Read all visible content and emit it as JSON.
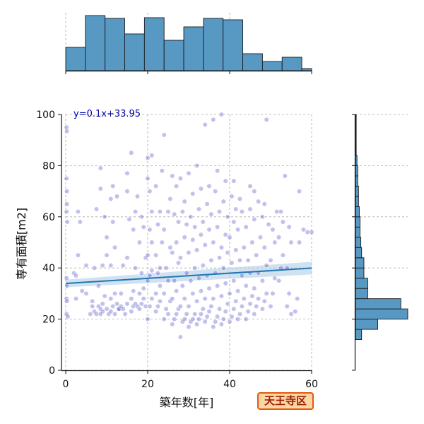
{
  "area_label": "天王寺区",
  "colors": {
    "point_fill": "#2222bb",
    "regression_line": "#1f77b4",
    "confidence_band": "#a9c8e3",
    "histogram_fill": "#5899c4",
    "histogram_edge": "#1a1a1a",
    "equation_text": "#0000aa",
    "badge_fill": "#fcd6a5",
    "badge_border": "#e25a0c"
  },
  "chart_data": {
    "type": "scatter",
    "title": "",
    "xlabel": "築年数[年]",
    "ylabel": "専有面積[m2]",
    "xlim": [
      0,
      60
    ],
    "ylim": [
      0,
      100
    ],
    "x_ticks": [
      0,
      20,
      40,
      60
    ],
    "y_ticks": [
      0,
      20,
      40,
      60,
      80,
      100
    ],
    "grid": true,
    "regression": {
      "equation_text": "y=0.1x+33.95",
      "slope": 0.1,
      "intercept": 33.95,
      "confidence_band_halfwidth": 2.5
    },
    "top_histogram": {
      "bin_edges": [
        0,
        4.8,
        9.6,
        14.4,
        19.2,
        24.0,
        28.8,
        33.6,
        38.4,
        43.2,
        48.0,
        52.8,
        57.6,
        60.0
      ],
      "counts": [
        33,
        78,
        74,
        52,
        75,
        43,
        62,
        74,
        72,
        24,
        13,
        19,
        3
      ]
    },
    "right_histogram": {
      "bin_edges": [
        12,
        16,
        20,
        24,
        28,
        32,
        36,
        40,
        44,
        48,
        52,
        56,
        60,
        64,
        68,
        72,
        76,
        80,
        84,
        88,
        92,
        96,
        100
      ],
      "counts": [
        8,
        29,
        68,
        59,
        16,
        16,
        11,
        11,
        8,
        7,
        6,
        6,
        5,
        4,
        4,
        3,
        3,
        2,
        1,
        1,
        1,
        1
      ]
    },
    "points": [
      [
        0.2,
        95
      ],
      [
        0.3,
        93.5
      ],
      [
        0.2,
        75
      ],
      [
        0.3,
        70
      ],
      [
        0.3,
        65
      ],
      [
        0.2,
        62
      ],
      [
        0.4,
        58
      ],
      [
        0.2,
        36
      ],
      [
        0.3,
        33
      ],
      [
        0.2,
        28
      ],
      [
        0.3,
        27
      ],
      [
        0.2,
        22
      ],
      [
        0.5,
        21
      ],
      [
        2,
        38
      ],
      [
        2.5,
        37
      ],
      [
        3,
        45
      ],
      [
        3.5,
        58
      ],
      [
        3,
        62
      ],
      [
        2.5,
        28
      ],
      [
        4,
        31
      ],
      [
        5,
        41
      ],
      [
        5,
        30
      ],
      [
        6,
        22
      ],
      [
        6.5,
        25
      ],
      [
        7,
        23
      ],
      [
        7.5,
        22
      ],
      [
        6.5,
        27
      ],
      [
        7,
        40
      ],
      [
        7.5,
        63
      ],
      [
        8,
        33
      ],
      [
        8,
        25
      ],
      [
        8.5,
        24
      ],
      [
        9,
        23
      ],
      [
        8.5,
        22
      ],
      [
        9,
        26
      ],
      [
        9.5,
        29
      ],
      [
        10,
        24
      ],
      [
        10.5,
        22
      ],
      [
        9,
        41
      ],
      [
        10,
        52
      ],
      [
        10,
        45
      ],
      [
        9.5,
        60
      ],
      [
        8.5,
        71
      ],
      [
        8.5,
        79
      ],
      [
        11,
        23
      ],
      [
        11.5,
        25
      ],
      [
        12,
        22
      ],
      [
        12.5,
        26
      ],
      [
        13,
        24
      ],
      [
        11,
        28
      ],
      [
        12,
        30
      ],
      [
        11,
        41
      ],
      [
        12,
        48
      ],
      [
        11.5,
        58
      ],
      [
        11,
        67
      ],
      [
        11.5,
        72
      ],
      [
        12.5,
        68
      ],
      [
        13,
        24
      ],
      [
        13.5,
        25
      ],
      [
        14,
        24
      ],
      [
        14.5,
        22
      ],
      [
        15,
        26
      ],
      [
        13.5,
        30
      ],
      [
        14,
        41
      ],
      [
        15,
        44
      ],
      [
        15.5,
        59
      ],
      [
        15,
        70
      ],
      [
        15,
        77
      ],
      [
        16,
        85
      ],
      [
        16,
        23
      ],
      [
        16.5,
        25
      ],
      [
        17,
        26
      ],
      [
        17.5,
        25
      ],
      [
        16,
        28
      ],
      [
        16.5,
        31
      ],
      [
        17,
        40
      ],
      [
        16.5,
        55
      ],
      [
        17,
        62
      ],
      [
        17.5,
        68
      ],
      [
        18,
        24
      ],
      [
        18.5,
        26
      ],
      [
        19,
        28
      ],
      [
        19.5,
        25
      ],
      [
        18,
        30
      ],
      [
        19,
        32
      ],
      [
        18.5,
        38
      ],
      [
        19.5,
        44
      ],
      [
        18,
        50
      ],
      [
        19,
        56
      ],
      [
        18.5,
        60
      ],
      [
        20,
        20
      ],
      [
        20.5,
        25
      ],
      [
        21,
        28
      ],
      [
        20,
        35
      ],
      [
        20.5,
        37
      ],
      [
        21,
        39
      ],
      [
        20,
        45
      ],
      [
        21,
        50
      ],
      [
        20.5,
        55
      ],
      [
        21,
        62
      ],
      [
        20.5,
        70
      ],
      [
        20,
        75
      ],
      [
        20,
        83
      ],
      [
        21,
        84
      ],
      [
        22,
        23
      ],
      [
        22.5,
        25
      ],
      [
        23,
        27
      ],
      [
        22,
        30
      ],
      [
        23,
        33
      ],
      [
        22.5,
        38
      ],
      [
        23,
        40
      ],
      [
        22,
        45
      ],
      [
        23.5,
        50
      ],
      [
        22.5,
        57
      ],
      [
        23,
        62
      ],
      [
        22,
        72
      ],
      [
        23.5,
        78
      ],
      [
        24,
        92
      ],
      [
        24,
        20
      ],
      [
        24.5,
        24
      ],
      [
        25,
        22
      ],
      [
        25.5,
        27
      ],
      [
        24,
        30
      ],
      [
        25,
        35
      ],
      [
        24.5,
        40
      ],
      [
        25.5,
        48
      ],
      [
        24,
        55
      ],
      [
        25,
        62
      ],
      [
        25.5,
        67
      ],
      [
        26,
        18
      ],
      [
        26.5,
        20
      ],
      [
        27,
        22
      ],
      [
        27.5,
        24
      ],
      [
        26,
        28
      ],
      [
        27,
        31
      ],
      [
        26.5,
        35
      ],
      [
        27.5,
        42
      ],
      [
        26,
        46
      ],
      [
        27,
        50
      ],
      [
        27.5,
        58
      ],
      [
        26.5,
        61
      ],
      [
        27,
        72
      ],
      [
        26,
        76
      ],
      [
        28,
        13
      ],
      [
        28.5,
        19
      ],
      [
        29,
        20
      ],
      [
        29.5,
        22
      ],
      [
        28,
        25
      ],
      [
        29,
        28
      ],
      [
        28.5,
        33
      ],
      [
        29.5,
        38
      ],
      [
        28,
        44
      ],
      [
        29,
        52
      ],
      [
        29.5,
        57
      ],
      [
        28.5,
        62
      ],
      [
        29,
        66
      ],
      [
        28,
        75
      ],
      [
        30,
        17
      ],
      [
        30.5,
        19
      ],
      [
        31,
        20
      ],
      [
        31.5,
        22
      ],
      [
        30,
        25
      ],
      [
        31,
        30
      ],
      [
        30.5,
        35
      ],
      [
        31.5,
        40
      ],
      [
        30,
        46
      ],
      [
        31,
        51
      ],
      [
        31.5,
        56
      ],
      [
        30.5,
        60
      ],
      [
        31,
        69
      ],
      [
        30,
        77
      ],
      [
        32,
        18
      ],
      [
        32.5,
        20
      ],
      [
        33,
        22
      ],
      [
        33.5,
        24
      ],
      [
        32,
        27
      ],
      [
        33,
        31
      ],
      [
        32.5,
        36
      ],
      [
        33.5,
        41
      ],
      [
        32,
        47
      ],
      [
        33,
        53
      ],
      [
        33.5,
        58
      ],
      [
        32.5,
        63
      ],
      [
        33,
        71
      ],
      [
        32,
        80
      ],
      [
        34,
        19
      ],
      [
        34.5,
        21
      ],
      [
        35,
        23
      ],
      [
        35.5,
        25
      ],
      [
        34,
        28
      ],
      [
        35,
        32
      ],
      [
        34.5,
        37
      ],
      [
        35.5,
        43
      ],
      [
        34,
        49
      ],
      [
        35,
        55
      ],
      [
        35.5,
        61
      ],
      [
        34.5,
        65
      ],
      [
        35,
        72
      ],
      [
        34,
        96
      ],
      [
        36,
        17
      ],
      [
        36.5,
        19
      ],
      [
        37,
        21
      ],
      [
        37.5,
        24
      ],
      [
        36,
        28
      ],
      [
        37,
        33
      ],
      [
        36.5,
        38
      ],
      [
        37.5,
        44
      ],
      [
        36,
        50
      ],
      [
        37,
        56
      ],
      [
        37.5,
        62
      ],
      [
        36.5,
        70
      ],
      [
        37,
        78
      ],
      [
        36,
        98
      ],
      [
        38,
        18
      ],
      [
        38.5,
        20
      ],
      [
        39,
        23
      ],
      [
        39.5,
        26
      ],
      [
        38,
        29
      ],
      [
        39,
        34
      ],
      [
        38.5,
        40
      ],
      [
        39.5,
        46
      ],
      [
        38,
        48
      ],
      [
        39,
        53
      ],
      [
        39.5,
        60
      ],
      [
        38.5,
        66
      ],
      [
        39,
        74
      ],
      [
        38,
        100
      ],
      [
        40,
        19
      ],
      [
        40.5,
        21
      ],
      [
        41,
        24
      ],
      [
        41.5,
        27
      ],
      [
        40,
        30
      ],
      [
        41,
        35
      ],
      [
        40.5,
        42
      ],
      [
        41.5,
        47
      ],
      [
        40,
        52
      ],
      [
        41,
        58
      ],
      [
        41.5,
        63
      ],
      [
        40.5,
        68
      ],
      [
        41,
        74
      ],
      [
        42,
        20
      ],
      [
        42.5,
        22
      ],
      [
        43,
        25
      ],
      [
        43.5,
        28
      ],
      [
        42,
        31
      ],
      [
        43,
        37
      ],
      [
        42.5,
        43
      ],
      [
        43.5,
        48
      ],
      [
        42,
        55
      ],
      [
        43,
        62
      ],
      [
        42.5,
        67
      ],
      [
        44,
        20
      ],
      [
        44.5,
        23
      ],
      [
        45,
        26
      ],
      [
        45.5,
        29
      ],
      [
        44,
        33
      ],
      [
        45,
        38
      ],
      [
        44.5,
        43
      ],
      [
        45.5,
        50
      ],
      [
        44,
        56
      ],
      [
        45,
        63
      ],
      [
        45,
        72
      ],
      [
        46,
        22
      ],
      [
        46.5,
        25
      ],
      [
        47,
        28
      ],
      [
        46,
        32
      ],
      [
        47,
        38
      ],
      [
        46.5,
        45
      ],
      [
        47.5,
        52
      ],
      [
        46,
        59
      ],
      [
        47,
        66
      ],
      [
        46,
        70
      ],
      [
        48,
        24
      ],
      [
        48.5,
        27
      ],
      [
        49,
        30
      ],
      [
        48,
        35
      ],
      [
        49,
        41
      ],
      [
        48.5,
        48
      ],
      [
        49.5,
        57
      ],
      [
        48,
        60
      ],
      [
        48.5,
        65
      ],
      [
        49,
        98
      ],
      [
        50,
        25
      ],
      [
        50.5,
        30
      ],
      [
        51,
        36
      ],
      [
        50,
        43
      ],
      [
        51,
        50
      ],
      [
        50.5,
        55
      ],
      [
        51.5,
        62
      ],
      [
        52,
        35
      ],
      [
        52.5,
        40
      ],
      [
        53,
        45
      ],
      [
        52,
        52
      ],
      [
        53,
        58
      ],
      [
        52.5,
        62
      ],
      [
        53.5,
        76
      ],
      [
        54,
        25
      ],
      [
        54.5,
        30
      ],
      [
        55,
        22
      ],
      [
        54,
        40
      ],
      [
        55,
        50
      ],
      [
        54.5,
        56
      ],
      [
        56,
        23
      ],
      [
        56.5,
        28
      ],
      [
        57,
        50
      ],
      [
        57,
        70
      ],
      [
        58,
        55
      ],
      [
        59,
        54
      ],
      [
        60,
        54
      ]
    ]
  }
}
